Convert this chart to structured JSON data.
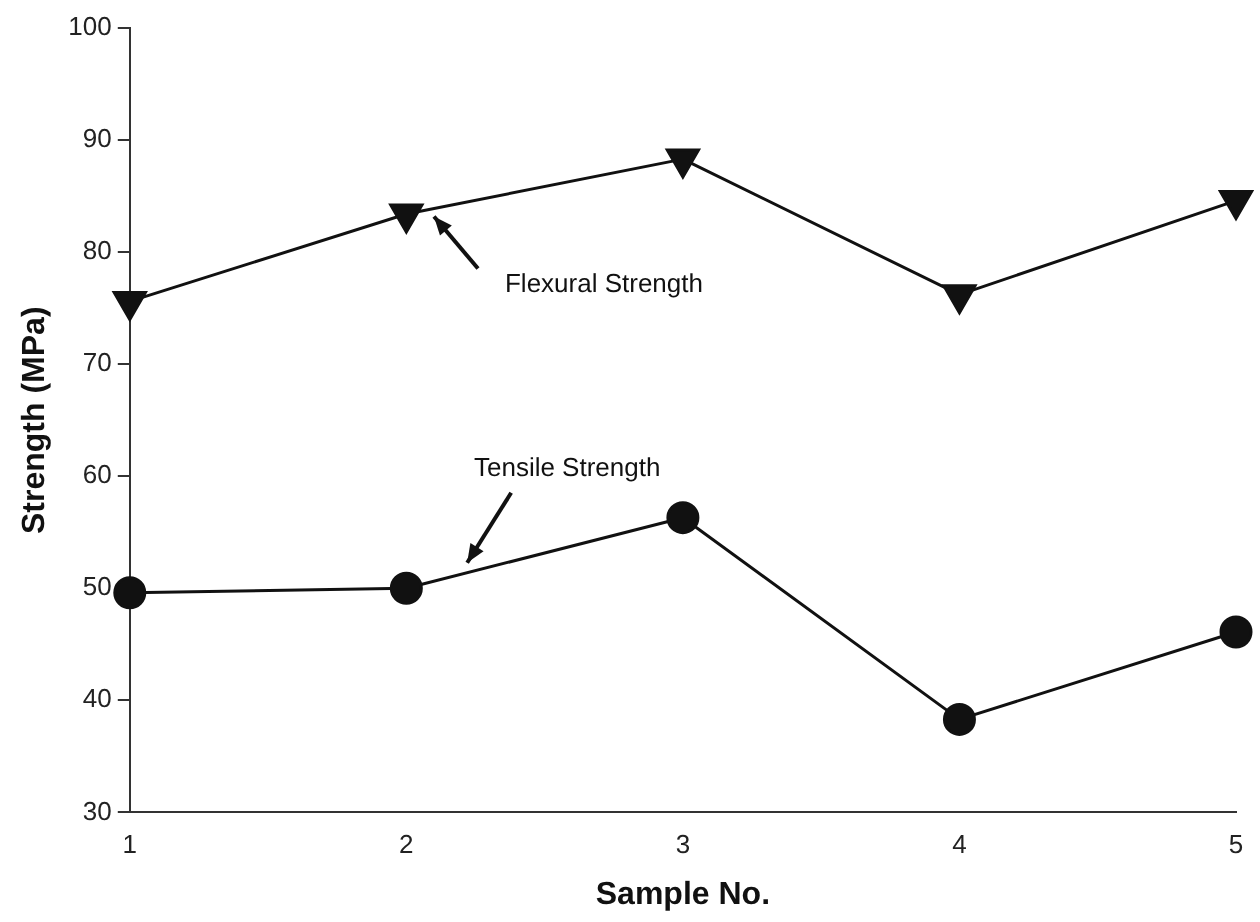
{
  "chart_data": {
    "type": "line",
    "xlabel": "Sample No.",
    "ylabel": "Strength (MPa)",
    "x": [
      1,
      2,
      3,
      4,
      5
    ],
    "series": [
      {
        "name": "Flexural Strength",
        "color": "#111111",
        "marker": "triangle",
        "values": [
          75.6,
          83.4,
          88.3,
          76.2,
          84.6
        ]
      },
      {
        "name": "Tensile Strength",
        "color": "#111111",
        "marker": "circle",
        "values": [
          49.6,
          50.0,
          56.3,
          38.3,
          46.1
        ]
      }
    ],
    "xlim": [
      1,
      5
    ],
    "xticks": [
      1,
      2,
      3,
      4,
      5
    ],
    "ylim": [
      30,
      100
    ],
    "yticks": [
      30,
      40,
      50,
      60,
      70,
      80,
      90,
      100
    ],
    "grid": false,
    "legend": false,
    "line_style": "solid"
  }
}
